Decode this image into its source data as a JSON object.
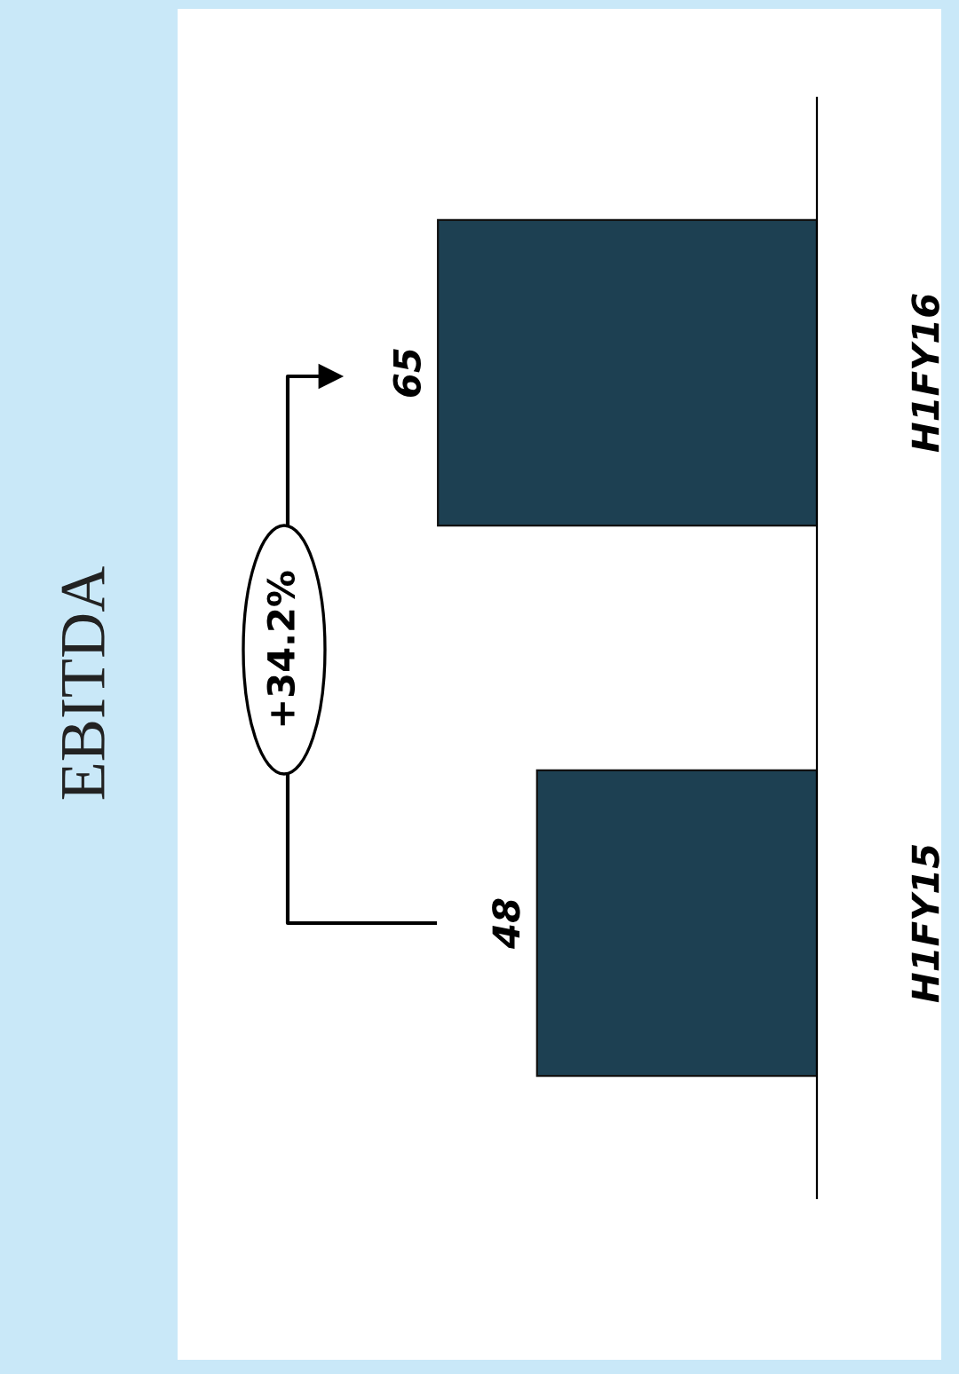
{
  "chart_data": {
    "type": "bar",
    "orientation": "horizontal",
    "title": "EBITDA",
    "categories": [
      "H1FY16",
      "H1FY15"
    ],
    "values": [
      65,
      48
    ],
    "color": "#1d4052",
    "data_labels": true,
    "grid": false,
    "annotations": [
      "+34.2%"
    ]
  }
}
